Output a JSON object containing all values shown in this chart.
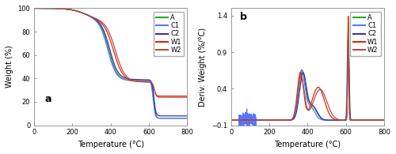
{
  "curves": {
    "A": {
      "color": "#22aa22"
    },
    "C1": {
      "color": "#5577ff"
    },
    "C2": {
      "color": "#3333aa"
    },
    "W1": {
      "color": "#ee2200"
    },
    "W2": {
      "color": "#aa5544"
    }
  },
  "subplot_a": {
    "xlabel": "Temperature (°C)",
    "ylabel": "Weight (%)",
    "xlim": [
      0,
      800
    ],
    "ylim": [
      0,
      100
    ],
    "label": "a",
    "yticks": [
      0,
      20,
      40,
      60,
      80,
      100
    ],
    "xticks": [
      0,
      200,
      400,
      600,
      800
    ]
  },
  "subplot_b": {
    "xlabel": "Temperature (°C)",
    "ylabel": "Deriv. Weight (%/°C)",
    "xlim": [
      0,
      800
    ],
    "ylim": [
      -0.1,
      1.5
    ],
    "label": "b",
    "yticks": [
      -0.1,
      0.4,
      0.9,
      1.4
    ],
    "xticks": [
      0,
      200,
      400,
      600,
      800
    ]
  },
  "background_color": "#ffffff",
  "legend_fontsize": 6.0,
  "axis_fontsize": 7,
  "tick_fontsize": 6,
  "label_fontsize": 9
}
